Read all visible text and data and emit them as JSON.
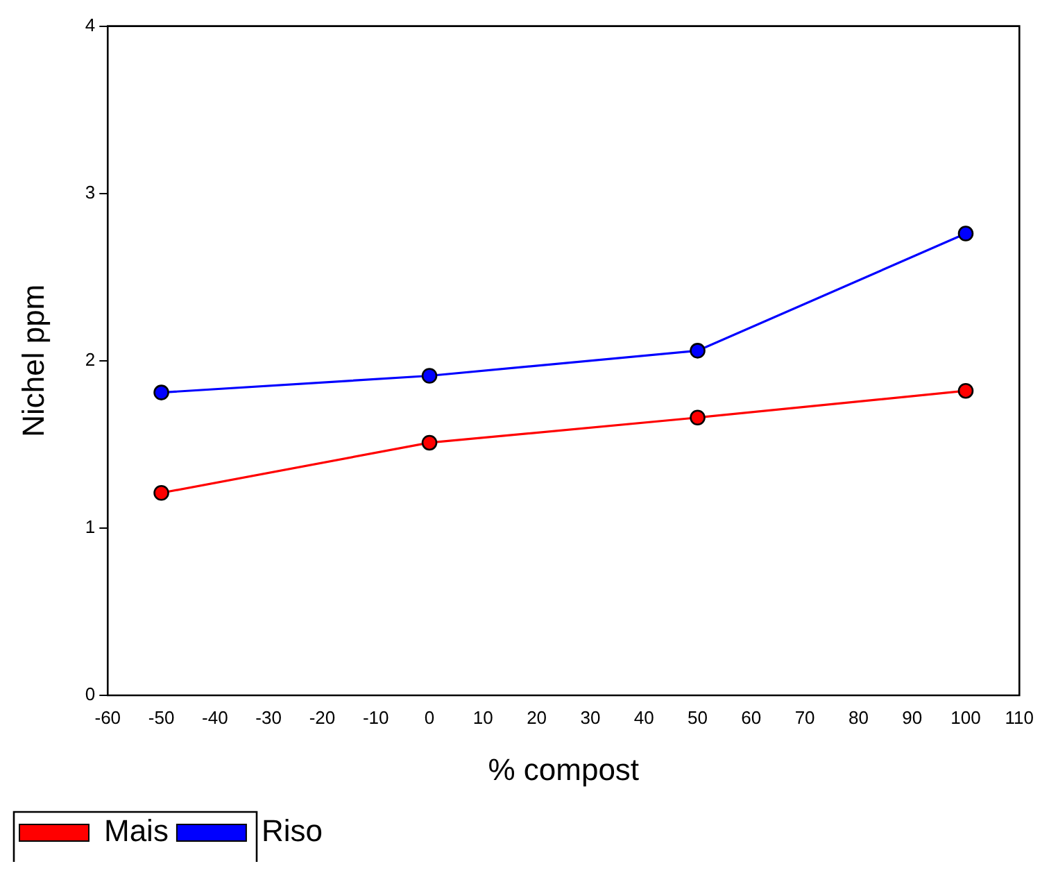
{
  "chart_data": {
    "type": "line",
    "xlabel": "% compost",
    "ylabel": "Nichel ppm",
    "x": [
      -50,
      0,
      50,
      100
    ],
    "series": [
      {
        "name": "Mais",
        "color": "#ff0000",
        "values": [
          1.21,
          1.51,
          1.66,
          1.82
        ]
      },
      {
        "name": "Riso",
        "color": "#0000ff",
        "values": [
          1.81,
          1.91,
          2.06,
          2.76
        ]
      }
    ],
    "xlim": [
      -60,
      110
    ],
    "xticks": [
      -60,
      -50,
      -40,
      -30,
      -20,
      -10,
      0,
      10,
      20,
      30,
      40,
      50,
      60,
      70,
      80,
      90,
      100,
      110
    ],
    "ylim": [
      0,
      4
    ],
    "yticks": [
      0,
      1,
      2,
      3,
      4
    ],
    "grid": false,
    "legend": "bottom left",
    "marker": "circle",
    "line_style": "solid"
  }
}
